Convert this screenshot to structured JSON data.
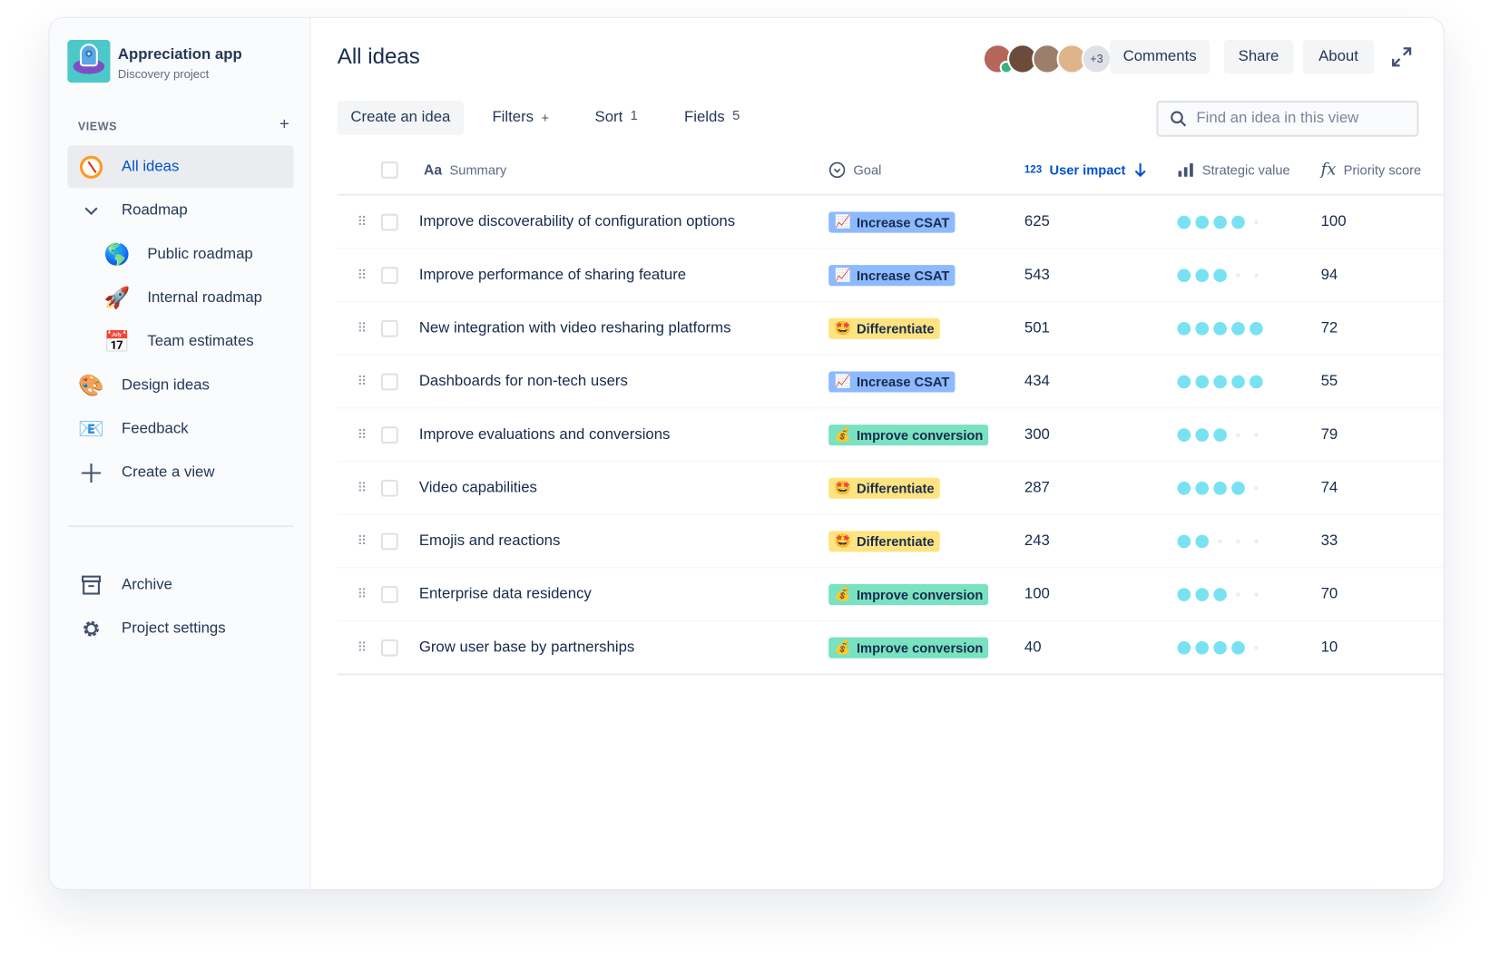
{
  "project": {
    "name": "Appreciation app",
    "subtitle": "Discovery project"
  },
  "sidebar": {
    "views_label": "VIEWS",
    "add_icon": "+",
    "items": [
      {
        "label": "All ideas",
        "icon": "compass-icon",
        "selected": true
      },
      {
        "label": "Roadmap",
        "icon": "chevron-down-icon",
        "expanded": true
      },
      {
        "label": "Public roadmap",
        "icon": "globe-icon",
        "emoji": "🌎"
      },
      {
        "label": "Internal roadmap",
        "icon": "rocket-icon",
        "emoji": "🚀"
      },
      {
        "label": "Team estimates",
        "icon": "calendar-icon",
        "emoji": "📅"
      },
      {
        "label": "Design ideas",
        "icon": "palette-icon",
        "emoji": "🎨"
      },
      {
        "label": "Feedback",
        "icon": "envelope-icon",
        "emoji": "📧"
      },
      {
        "label": "Create a view",
        "icon": "plus-icon"
      }
    ],
    "bottom": [
      {
        "label": "Archive",
        "icon": "archive-icon"
      },
      {
        "label": "Project settings",
        "icon": "gear-icon"
      }
    ]
  },
  "header": {
    "title": "All ideas",
    "avatars_more": "+3",
    "buttons": {
      "comments": "Comments",
      "share": "Share",
      "about": "About"
    }
  },
  "toolbar": {
    "create": "Create an idea",
    "filters": "Filters",
    "filters_count": "+",
    "sort": "Sort",
    "sort_count": "1",
    "fields": "Fields",
    "fields_count": "5",
    "search_placeholder": "Find an idea in this view"
  },
  "table": {
    "columns": {
      "summary": "Summary",
      "summary_icon": "Aa",
      "goal": "Goal",
      "impact": "User impact",
      "impact_icon": "123",
      "strategic": "Strategic value",
      "priority": "Priority score",
      "priority_icon": "fx"
    },
    "sort": {
      "column": "User impact",
      "direction": "descending"
    },
    "strategic_max": 5,
    "goal_styles": {
      "Increase CSAT": {
        "emoji": "📈",
        "color": "#8DB9FF"
      },
      "Differentiate": {
        "emoji": "🤩",
        "color": "#FFE380"
      },
      "Improve conversion": {
        "emoji": "💰",
        "color": "#79E2C0"
      }
    },
    "rows": [
      {
        "summary": "Improve discoverability of configuration options",
        "goal": "Increase CSAT",
        "impact": "625",
        "strategic": 4,
        "priority": "100"
      },
      {
        "summary": "Improve performance of sharing feature",
        "goal": "Increase CSAT",
        "impact": "543",
        "strategic": 3,
        "priority": "94"
      },
      {
        "summary": "New integration with video resharing platforms",
        "goal": "Differentiate",
        "impact": "501",
        "strategic": 5,
        "priority": "72"
      },
      {
        "summary": "Dashboards for non-tech users",
        "goal": "Increase CSAT",
        "impact": "434",
        "strategic": 5,
        "priority": "55"
      },
      {
        "summary": "Improve evaluations and conversions",
        "goal": "Improve conversion",
        "impact": "300",
        "strategic": 3,
        "priority": "79"
      },
      {
        "summary": "Video capabilities",
        "goal": "Differentiate",
        "impact": "287",
        "strategic": 4,
        "priority": "74"
      },
      {
        "summary": "Emojis and reactions",
        "goal": "Differentiate",
        "impact": "243",
        "strategic": 2,
        "priority": "33"
      },
      {
        "summary": "Enterprise data residency",
        "goal": "Improve conversion",
        "impact": "100",
        "strategic": 3,
        "priority": "70"
      },
      {
        "summary": "Grow user base by partnerships",
        "goal": "Improve conversion",
        "impact": "40",
        "strategic": 4,
        "priority": "10"
      }
    ]
  }
}
